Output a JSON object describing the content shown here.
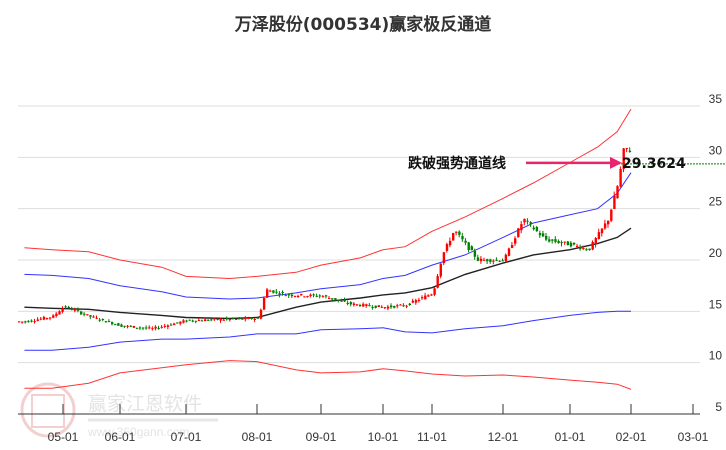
{
  "title": "万泽股份(000534)赢家极反通道",
  "colors": {
    "up": "#ff0000",
    "down": "#008000",
    "outer_band": "#ff3333",
    "inner_band": "#3333ff",
    "mid_line": "#222222",
    "arrow": "#e8246e",
    "price_line": "#008000",
    "grid": "#dddddd"
  },
  "watermark": {
    "text": "赢家江恩软件",
    "url": "www.360gann.com",
    "seal_chars": [
      "江",
      "赢",
      "恩",
      "家"
    ]
  },
  "annotation": {
    "text": "跌破强势通道线",
    "price_label": "29.3624"
  },
  "chart_data": {
    "type": "candlestick",
    "title": "万泽股份(000534)赢家极反通道",
    "xlabel": "",
    "ylabel": "",
    "ylim": [
      5,
      37
    ],
    "y_ticks": [
      5,
      10,
      15,
      20,
      25,
      30,
      35
    ],
    "x_ticks": [
      "05-01",
      "06-01",
      "07-01",
      "08-01",
      "09-01",
      "10-01",
      "11-01",
      "12-01",
      "01-01",
      "02-01",
      "03-01"
    ],
    "grid": "horizontal",
    "price_line": 29.3624,
    "series": [
      {
        "name": "outer_upper",
        "color": "#ff3333",
        "x": [
          "04-10",
          "04-25",
          "05-15",
          "06-01",
          "06-20",
          "07-01",
          "07-20",
          "08-01",
          "08-20",
          "09-01",
          "09-20",
          "10-01",
          "10-15",
          "11-01",
          "11-15",
          "12-01",
          "12-15",
          "01-01",
          "01-15",
          "01-25",
          "02-01"
        ],
        "values": [
          21.2,
          21.0,
          20.8,
          20.0,
          19.3,
          18.4,
          18.2,
          18.4,
          18.8,
          19.5,
          20.2,
          21.0,
          21.3,
          22.8,
          24.2,
          26.0,
          27.5,
          29.5,
          31.0,
          32.5,
          34.7
        ]
      },
      {
        "name": "inner_upper",
        "color": "#3333ff",
        "x": [
          "04-10",
          "04-25",
          "05-15",
          "06-01",
          "06-20",
          "07-01",
          "07-20",
          "08-01",
          "08-20",
          "09-01",
          "09-20",
          "10-01",
          "10-15",
          "11-01",
          "11-15",
          "12-01",
          "12-15",
          "01-01",
          "01-15",
          "01-25",
          "02-01"
        ],
        "values": [
          18.6,
          18.5,
          18.2,
          17.5,
          16.9,
          16.4,
          16.2,
          16.3,
          16.8,
          17.2,
          17.6,
          18.2,
          18.5,
          19.5,
          20.5,
          22.2,
          23.6,
          24.4,
          25.0,
          26.5,
          28.5
        ]
      },
      {
        "name": "mid_line",
        "color": "#222222",
        "x": [
          "04-10",
          "04-25",
          "05-15",
          "06-01",
          "06-20",
          "07-01",
          "07-20",
          "08-01",
          "08-20",
          "09-01",
          "09-20",
          "10-01",
          "10-15",
          "11-01",
          "11-15",
          "12-01",
          "12-15",
          "01-01",
          "01-15",
          "01-25",
          "02-01"
        ],
        "values": [
          15.4,
          15.3,
          15.2,
          14.9,
          14.6,
          14.4,
          14.3,
          14.4,
          15.4,
          15.9,
          16.3,
          16.6,
          16.8,
          17.3,
          18.6,
          19.7,
          20.5,
          21.0,
          21.6,
          22.2,
          23.1
        ]
      },
      {
        "name": "inner_lower",
        "color": "#3333ff",
        "x": [
          "04-10",
          "04-25",
          "05-15",
          "06-01",
          "06-20",
          "07-01",
          "07-20",
          "08-01",
          "08-20",
          "09-01",
          "09-20",
          "10-01",
          "10-15",
          "11-01",
          "11-15",
          "12-01",
          "12-15",
          "01-01",
          "01-15",
          "01-25",
          "02-01"
        ],
        "values": [
          11.2,
          11.2,
          11.5,
          12.0,
          12.3,
          12.3,
          12.5,
          12.8,
          12.8,
          13.2,
          13.3,
          13.4,
          13.0,
          12.9,
          13.3,
          13.6,
          14.1,
          14.6,
          14.9,
          15.0,
          15.0
        ]
      },
      {
        "name": "outer_lower",
        "color": "#ff3333",
        "x": [
          "04-10",
          "04-25",
          "05-15",
          "06-01",
          "06-20",
          "07-01",
          "07-20",
          "08-01",
          "08-20",
          "09-01",
          "09-20",
          "10-01",
          "10-15",
          "11-01",
          "11-15",
          "12-01",
          "12-15",
          "01-01",
          "01-15",
          "01-25",
          "02-01"
        ],
        "values": [
          7.5,
          7.5,
          8.0,
          9.0,
          9.5,
          9.8,
          10.2,
          10.1,
          9.3,
          9.0,
          9.1,
          9.4,
          9.2,
          8.9,
          8.7,
          8.8,
          8.6,
          8.3,
          8.1,
          7.9,
          7.4
        ]
      },
      {
        "name": "close_approx",
        "color": "#000000",
        "x": [
          "04-10",
          "04-25",
          "05-01",
          "05-15",
          "06-01",
          "06-15",
          "07-01",
          "07-15",
          "08-01",
          "08-05",
          "08-15",
          "09-01",
          "09-15",
          "10-01",
          "10-15",
          "11-01",
          "11-05",
          "11-10",
          "11-20",
          "12-01",
          "12-10",
          "12-20",
          "01-01",
          "01-10",
          "01-20",
          "01-25",
          "01-28",
          "02-01"
        ],
        "values": [
          14.0,
          14.5,
          15.5,
          14.5,
          13.6,
          13.3,
          14.1,
          14.2,
          14.3,
          17.1,
          16.6,
          16.5,
          15.7,
          15.4,
          15.6,
          16.8,
          20.5,
          22.9,
          20.0,
          20.0,
          24.0,
          22.0,
          21.5,
          21.0,
          24.0,
          27.5,
          31.0,
          30.5
        ]
      }
    ]
  }
}
